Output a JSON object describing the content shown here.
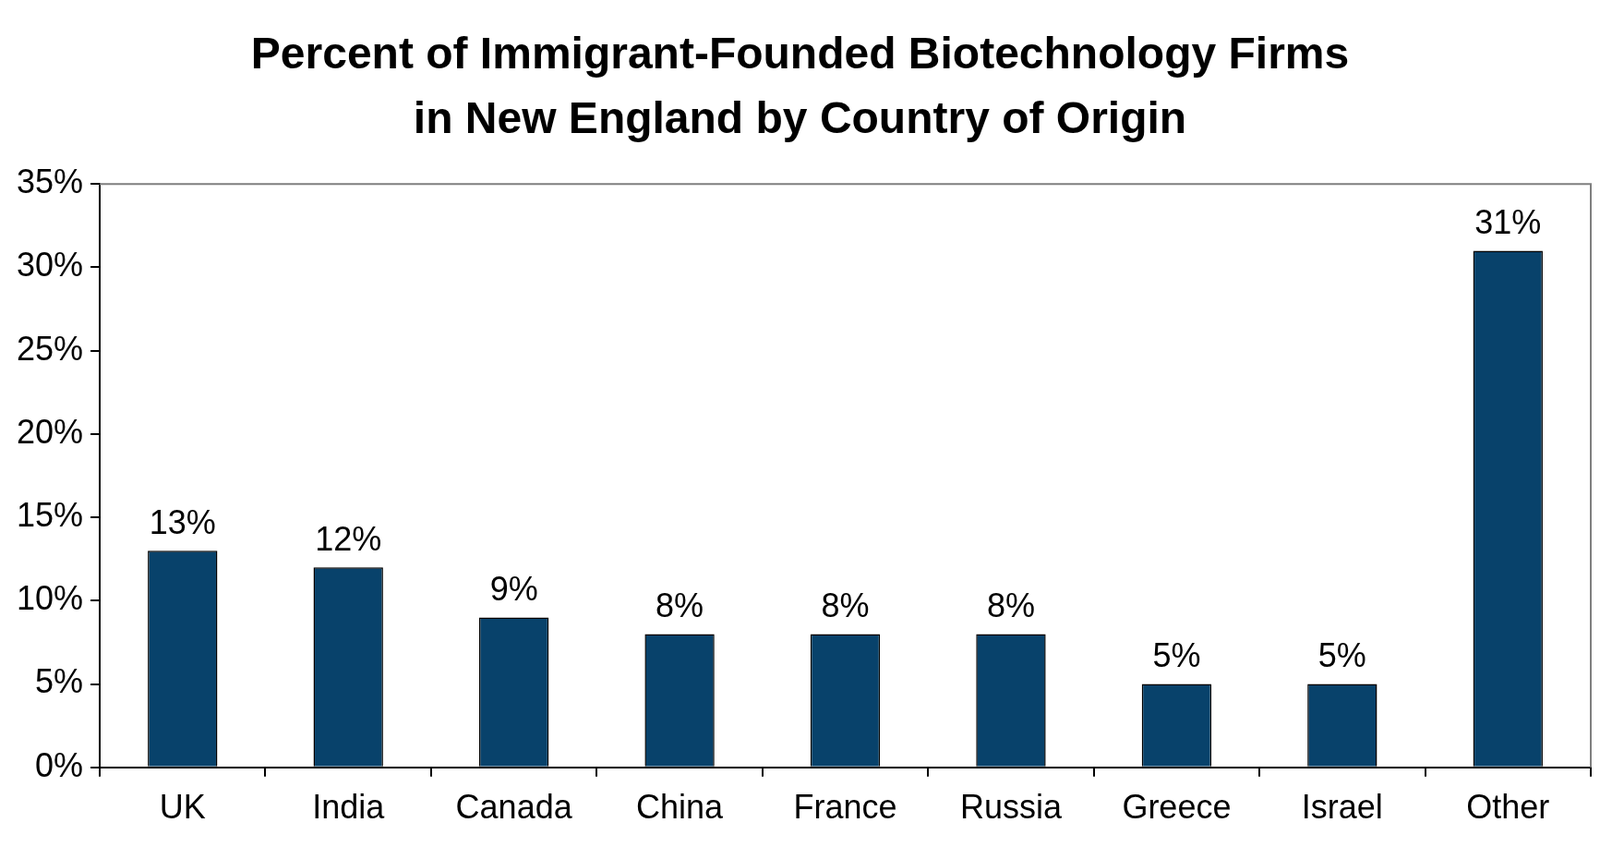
{
  "chart_data": {
    "type": "bar",
    "title": "Percent of Immigrant-Founded Biotechnology Firms\nin New England by Country of Origin",
    "categories": [
      "UK",
      "India",
      "Canada",
      "China",
      "France",
      "Russia",
      "Greece",
      "Israel",
      "Other"
    ],
    "values": [
      13,
      12,
      9,
      8,
      8,
      8,
      5,
      5,
      31
    ],
    "value_labels": [
      "13%",
      "12%",
      "9%",
      "8%",
      "8%",
      "8%",
      "5%",
      "5%",
      "31%"
    ],
    "color": "#08426b",
    "ylim": [
      0,
      35
    ],
    "yticks": [
      {
        "value": 0,
        "label": "0%"
      },
      {
        "value": 5,
        "label": "5%"
      },
      {
        "value": 10,
        "label": "10%"
      },
      {
        "value": 15,
        "label": "15%"
      },
      {
        "value": 20,
        "label": "20%"
      },
      {
        "value": 25,
        "label": "25%"
      },
      {
        "value": 30,
        "label": "30%"
      },
      {
        "value": 35,
        "label": "35%"
      }
    ],
    "grid": false,
    "data_labels": true
  }
}
